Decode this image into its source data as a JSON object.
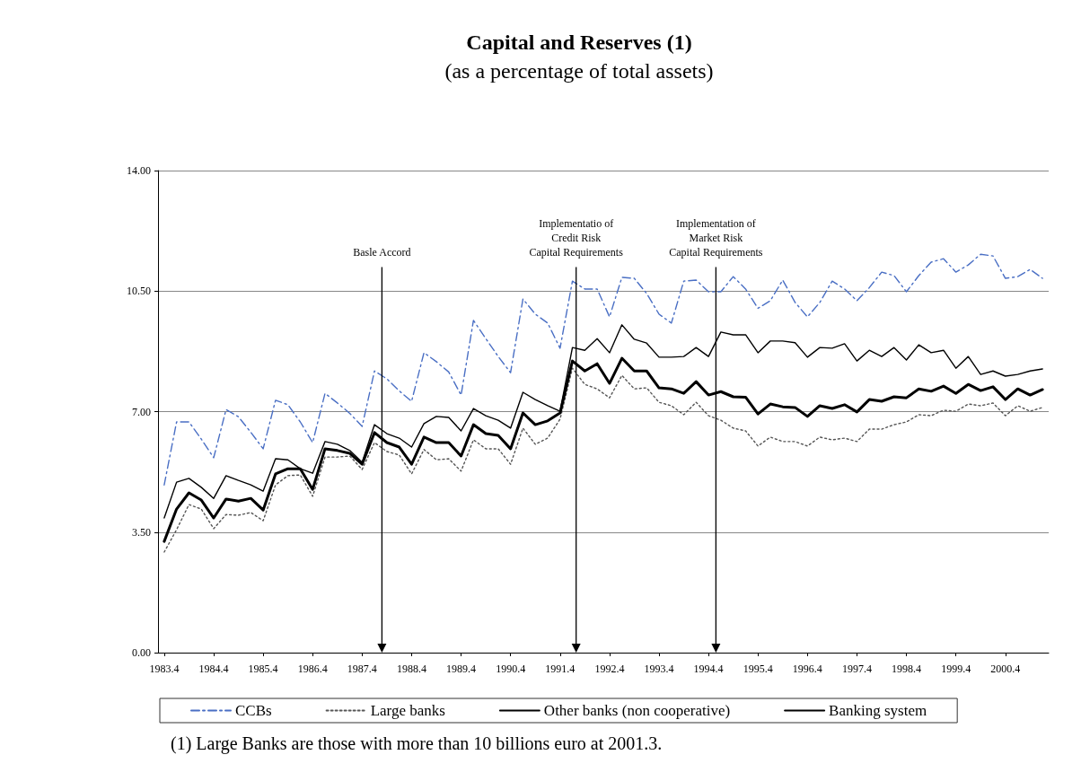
{
  "chart_data": {
    "type": "line",
    "title": "Capital and Reserves (1)",
    "subtitle": "(as a percentage of total assets)",
    "categories": [
      "1983.4",
      null,
      null,
      null,
      "1984.4",
      null,
      null,
      null,
      "1985.4",
      null,
      null,
      null,
      "1986.4",
      null,
      null,
      null,
      "1987.4",
      null,
      null,
      null,
      "1988.4",
      null,
      null,
      null,
      "1989.4",
      null,
      null,
      null,
      "1990.4",
      null,
      null,
      null,
      "1991.4",
      null,
      null,
      null,
      "1992.4",
      null,
      null,
      null,
      "1993.4",
      null,
      null,
      null,
      "1994.4",
      null,
      null,
      null,
      "1995.4",
      null,
      null,
      null,
      "1996.4",
      null,
      null,
      null,
      "1997.4",
      null,
      null,
      null,
      "1998.4",
      null,
      null,
      null,
      "1999.4",
      null,
      null,
      null,
      "2000.4",
      null,
      null,
      null
    ],
    "ylim": [
      0,
      14
    ],
    "yticks": [
      {
        "value": 0,
        "label": "0.00"
      },
      {
        "value": 3.5,
        "label": "3.50"
      },
      {
        "value": 7,
        "label": "7.00"
      },
      {
        "value": 10.5,
        "label": "10.50"
      },
      {
        "value": 14,
        "label": "14.00"
      }
    ],
    "grid": "y",
    "legend": "bottom",
    "marker": "none",
    "series": [
      {
        "name": "CCBs",
        "color": "#4a6fc4",
        "line_style": "dashed",
        "values": [
          4.87,
          6.7,
          6.7,
          6.2,
          5.66,
          7.06,
          6.85,
          6.4,
          5.92,
          7.33,
          7.2,
          6.7,
          6.1,
          7.53,
          7.25,
          6.95,
          6.57,
          8.18,
          7.95,
          7.6,
          7.3,
          8.71,
          8.45,
          8.15,
          7.48,
          9.65,
          9.12,
          8.6,
          8.13,
          10.27,
          9.83,
          9.57,
          8.84,
          10.79,
          10.56,
          10.56,
          9.75,
          10.9,
          10.87,
          10.43,
          9.83,
          9.57,
          10.79,
          10.82,
          10.48,
          10.48,
          10.92,
          10.56,
          10.0,
          10.22,
          10.82,
          10.17,
          9.75,
          10.17,
          10.79,
          10.56,
          10.22,
          10.6,
          11.05,
          10.95,
          10.48,
          10.95,
          11.34,
          11.44,
          11.05,
          11.26,
          11.57,
          11.52,
          10.87,
          10.92,
          11.13,
          10.87
        ]
      },
      {
        "name": "Large banks",
        "color": "#555555",
        "line_style": "dotted",
        "values": [
          2.92,
          3.57,
          4.3,
          4.17,
          3.6,
          4.01,
          3.99,
          4.07,
          3.83,
          4.87,
          5.14,
          5.16,
          4.54,
          5.68,
          5.68,
          5.71,
          5.32,
          6.1,
          5.84,
          5.74,
          5.19,
          5.9,
          5.6,
          5.63,
          5.27,
          6.18,
          5.92,
          5.92,
          5.47,
          6.52,
          6.05,
          6.23,
          6.78,
          8.26,
          7.79,
          7.66,
          7.4,
          8.05,
          7.66,
          7.69,
          7.27,
          7.17,
          6.91,
          7.27,
          6.88,
          6.75,
          6.52,
          6.44,
          6.0,
          6.26,
          6.13,
          6.13,
          6.0,
          6.26,
          6.18,
          6.23,
          6.13,
          6.49,
          6.49,
          6.62,
          6.7,
          6.91,
          6.88,
          7.04,
          7.01,
          7.22,
          7.17,
          7.25,
          6.88,
          7.17,
          7.01,
          7.12
        ]
      },
      {
        "name": "Other banks (non cooperative)",
        "color": "#000000",
        "line_style": "solid",
        "values": [
          3.91,
          4.95,
          5.06,
          4.8,
          4.48,
          5.14,
          5.0,
          4.87,
          4.69,
          5.63,
          5.6,
          5.34,
          5.21,
          6.13,
          6.05,
          5.87,
          5.53,
          6.62,
          6.36,
          6.23,
          5.97,
          6.65,
          6.86,
          6.83,
          6.44,
          7.09,
          6.88,
          6.75,
          6.52,
          7.56,
          7.35,
          7.17,
          7.01,
          8.86,
          8.78,
          9.12,
          8.71,
          9.52,
          9.1,
          8.99,
          8.58,
          8.58,
          8.6,
          8.86,
          8.6,
          9.31,
          9.23,
          9.23,
          8.71,
          9.05,
          9.05,
          9.0,
          8.58,
          8.86,
          8.84,
          8.97,
          8.47,
          8.78,
          8.6,
          8.86,
          8.5,
          8.94,
          8.71,
          8.78,
          8.26,
          8.6,
          8.08,
          8.18,
          8.03,
          8.08,
          8.18,
          8.24
        ]
      },
      {
        "name": "Banking system",
        "color": "#000000",
        "line_style": "solid",
        "values": [
          3.23,
          4.17,
          4.64,
          4.43,
          3.91,
          4.46,
          4.4,
          4.48,
          4.14,
          5.19,
          5.34,
          5.34,
          4.74,
          5.92,
          5.87,
          5.79,
          5.47,
          6.39,
          6.1,
          5.97,
          5.47,
          6.26,
          6.1,
          6.1,
          5.71,
          6.62,
          6.36,
          6.31,
          5.92,
          6.96,
          6.62,
          6.73,
          6.96,
          8.47,
          8.18,
          8.39,
          7.82,
          8.55,
          8.18,
          8.18,
          7.69,
          7.66,
          7.53,
          7.87,
          7.48,
          7.58,
          7.43,
          7.42,
          6.93,
          7.22,
          7.14,
          7.12,
          6.86,
          7.17,
          7.09,
          7.2,
          6.99,
          7.35,
          7.3,
          7.43,
          7.4,
          7.66,
          7.59,
          7.74,
          7.53,
          7.79,
          7.61,
          7.72,
          7.35,
          7.66,
          7.48,
          7.64
        ]
      }
    ],
    "annotations": [
      "Basle Accord",
      "Implementatio of\nCredit Risk\nCapital Requirements",
      "Implementation of\nMarket Risk\nCapital Requirements",
      "(1) Large Banks are those with more than 10 billions euro at 2001.3."
    ]
  }
}
